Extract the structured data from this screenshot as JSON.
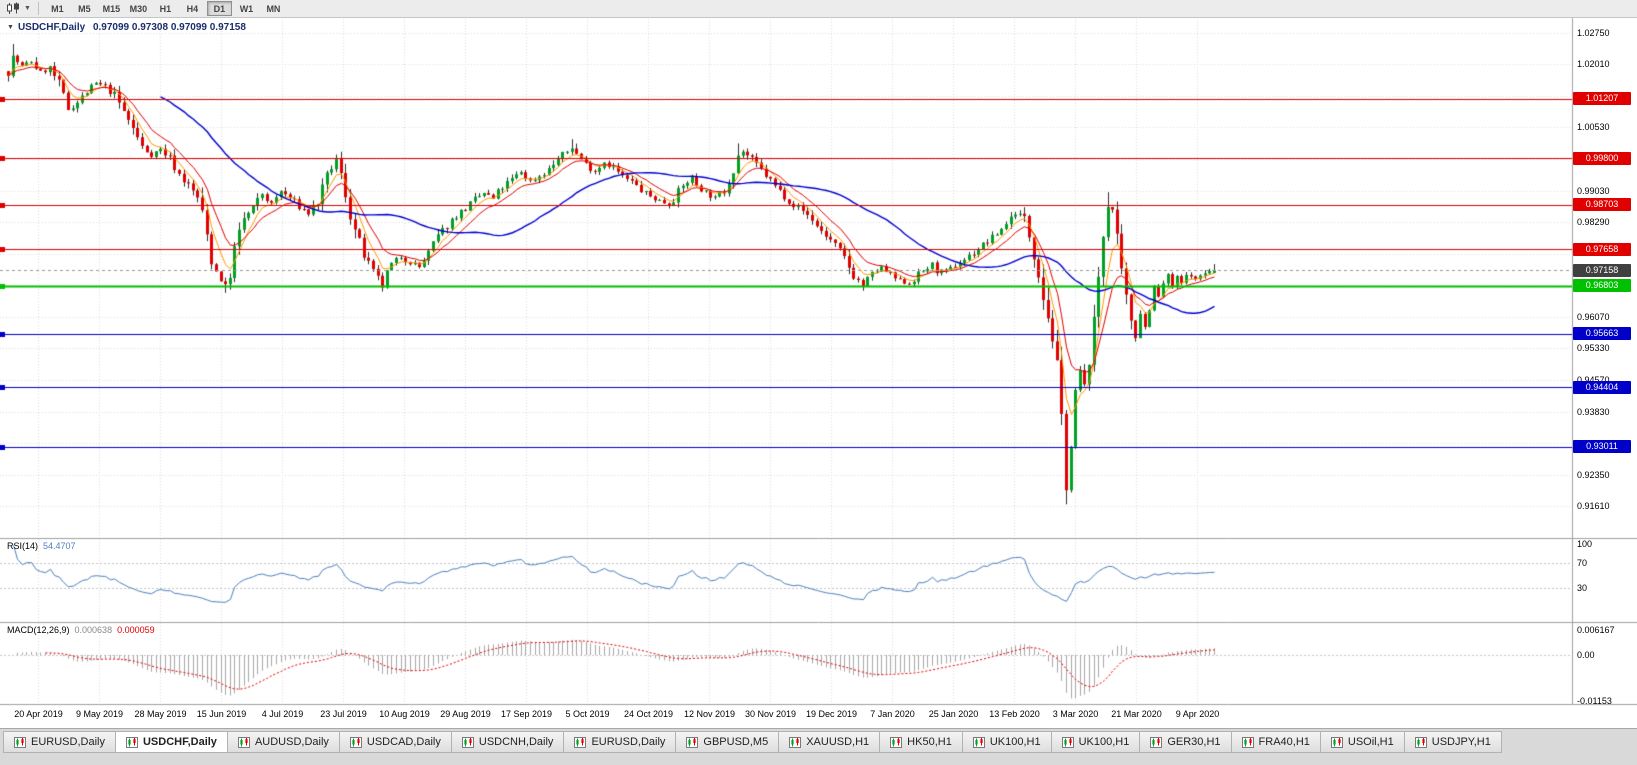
{
  "toolbar": {
    "chart_type_icon": "candlestick-chart-icon",
    "dropdown_icon": "chevron-down-icon",
    "timeframes": [
      {
        "label": "M1",
        "active": false
      },
      {
        "label": "M5",
        "active": false
      },
      {
        "label": "M15",
        "active": false
      },
      {
        "label": "M30",
        "active": false
      },
      {
        "label": "H1",
        "active": false
      },
      {
        "label": "H4",
        "active": false
      },
      {
        "label": "D1",
        "active": true
      },
      {
        "label": "W1",
        "active": false
      },
      {
        "label": "MN",
        "active": false
      }
    ]
  },
  "chart": {
    "collapse_icon": "▼",
    "symbol": "USDCHF,Daily",
    "ohlc_text": "0.97099 0.97308 0.97099 0.97158"
  },
  "price_axis": {
    "labeled_ticks": [
      "1.02750",
      "1.02010",
      "1.00530",
      "0.99030",
      "0.98290",
      "0.96070",
      "0.95330",
      "0.94570",
      "0.93830",
      "0.92350",
      "0.91610"
    ],
    "grid_ticks": [
      1.0275,
      1.0201,
      1.0127,
      1.0053,
      0.9979,
      0.9903,
      0.9829,
      0.9755,
      0.9681,
      0.9607,
      0.9533,
      0.9457,
      0.9383,
      0.9309,
      0.9235,
      0.9161
    ]
  },
  "levels": [
    {
      "value": "1.01207",
      "color": "#e00000",
      "width": 1
    },
    {
      "value": "0.99800",
      "color": "#e00000",
      "width": 1
    },
    {
      "value": "0.98703",
      "color": "#e00000",
      "width": 1
    },
    {
      "value": "0.97658",
      "color": "#e00000",
      "width": 1
    },
    {
      "value": "0.96803",
      "color": "#00c000",
      "width": 2
    },
    {
      "value": "0.95663",
      "color": "#0000c8",
      "width": 1
    },
    {
      "value": "0.94404",
      "color": "#0000c8",
      "width": 1
    },
    {
      "value": "0.93011",
      "color": "#0000c8",
      "width": 1
    }
  ],
  "current_price": {
    "value": "0.97158",
    "badge_color": "#404040"
  },
  "time_axis": {
    "ticks": [
      "20 Apr 2019",
      "9 May 2019",
      "28 May 2019",
      "15 Jun 2019",
      "4 Jul 2019",
      "23 Jul 2019",
      "10 Aug 2019",
      "29 Aug 2019",
      "17 Sep 2019",
      "5 Oct 2019",
      "24 Oct 2019",
      "12 Nov 2019",
      "30 Nov 2019",
      "19 Dec 2019",
      "7 Jan 2020",
      "25 Jan 2020",
      "13 Feb 2020",
      "3 Mar 2020",
      "21 Mar 2020",
      "9 Apr 2020"
    ]
  },
  "rsi": {
    "label": "RSI(14)",
    "value": "54.4707",
    "ticks": [
      "100",
      "70",
      "30"
    ],
    "tick_values": [
      100,
      70,
      30
    ],
    "level_lines": [
      70,
      30
    ]
  },
  "macd": {
    "label": "MACD(12,26,9)",
    "value_main": "0.000638",
    "value_signal": "0.000059",
    "ticks": [
      "0.006167",
      "0.00",
      "-0.01153"
    ],
    "tick_values": [
      0.006167,
      0,
      -0.01153
    ]
  },
  "tabs": {
    "items": [
      {
        "label": "EURUSD,Daily",
        "active": false
      },
      {
        "label": "USDCHF,Daily",
        "active": true
      },
      {
        "label": "AUDUSD,Daily",
        "active": false
      },
      {
        "label": "USDCAD,Daily",
        "active": false
      },
      {
        "label": "USDCNH,Daily",
        "active": false
      },
      {
        "label": "EURUSD,Daily",
        "active": false
      },
      {
        "label": "GBPUSD,M5",
        "active": false
      },
      {
        "label": "XAUUSD,H1",
        "active": false
      },
      {
        "label": "HK50,H1",
        "active": false
      },
      {
        "label": "UK100,H1",
        "active": false
      },
      {
        "label": "UK100,H1",
        "active": false
      },
      {
        "label": "GER30,H1",
        "active": false
      },
      {
        "label": "FRA40,H1",
        "active": false
      },
      {
        "label": "USOil,H1",
        "active": false
      },
      {
        "label": "USDJPY,H1",
        "active": false
      }
    ]
  },
  "colors": {
    "up_candle": "#00a024",
    "down_candle": "#e00000",
    "wick": "#2f2f2f",
    "ma_fast": "#ff9900",
    "ma_mid": "#e00000",
    "ma_slow": "#0000cc",
    "rsi_line": "#4c7fbe",
    "rsi_level": "#c8c8c8",
    "macd_histogram": "#a8a8a8",
    "macd_signal": "#e00000",
    "grid": "#dedede",
    "separator": "#a0a0a0",
    "current_line": "#9a9a9a"
  },
  "chart_data": {
    "type": "candlestick",
    "symbol": "USDCHF",
    "timeframe": "Daily",
    "title": "USDCHF,Daily",
    "visible_range": {
      "price_min": 0.9161,
      "price_max": 1.0275,
      "date_start": "20 Apr 2019",
      "date_end": "9 Apr 2020"
    },
    "num_candles": 262,
    "last_candle": {
      "open": 0.97099,
      "high": 0.97308,
      "low": 0.97099,
      "close": 0.97158
    },
    "horizontal_levels": [
      1.01207,
      0.998,
      0.98703,
      0.97658,
      0.96803,
      0.95663,
      0.94404,
      0.93011
    ],
    "moving_averages": [
      {
        "type": "EMA",
        "period": 5,
        "color": "#ff9900"
      },
      {
        "type": "EMA",
        "period": 10,
        "color": "#e00000"
      },
      {
        "type": "SMA",
        "period": 34,
        "color": "#0000cc"
      }
    ],
    "indicators": [
      {
        "name": "RSI",
        "period": 14,
        "current": 54.4707
      },
      {
        "name": "MACD",
        "fast": 12,
        "slow": 26,
        "signal": 9,
        "current_main": 0.000638,
        "current_signal": 5.9e-05
      }
    ],
    "price_path_anchors": [
      [
        0,
        1.0185
      ],
      [
        1,
        1.0218
      ],
      [
        3,
        1.0196
      ],
      [
        5,
        1.0208
      ],
      [
        7,
        1.0182
      ],
      [
        9,
        1.0193
      ],
      [
        11,
        1.0152
      ],
      [
        13,
        1.0096
      ],
      [
        15,
        1.0112
      ],
      [
        17,
        1.0136
      ],
      [
        19,
        1.0156
      ],
      [
        21,
        1.0148
      ],
      [
        23,
        1.0128
      ],
      [
        25,
        1.009
      ],
      [
        27,
        1.005
      ],
      [
        29,
        1.0006
      ],
      [
        31,
        0.9988
      ],
      [
        33,
        1.0001
      ],
      [
        35,
        0.998
      ],
      [
        37,
        0.9942
      ],
      [
        39,
        0.9916
      ],
      [
        41,
        0.9888
      ],
      [
        42,
        0.9844
      ],
      [
        43,
        0.9798
      ],
      [
        44,
        0.9744
      ],
      [
        45,
        0.9714
      ],
      [
        46,
        0.9698
      ],
      [
        47,
        0.9678
      ],
      [
        48,
        0.9712
      ],
      [
        49,
        0.9762
      ],
      [
        50,
        0.98
      ],
      [
        51,
        0.9838
      ],
      [
        53,
        0.9862
      ],
      [
        55,
        0.9896
      ],
      [
        57,
        0.9872
      ],
      [
        59,
        0.9902
      ],
      [
        61,
        0.9886
      ],
      [
        63,
        0.9866
      ],
      [
        65,
        0.985
      ],
      [
        67,
        0.9878
      ],
      [
        69,
        0.9932
      ],
      [
        70,
        0.996
      ],
      [
        71,
        0.9976
      ],
      [
        72,
        0.9936
      ],
      [
        73,
        0.9898
      ],
      [
        74,
        0.9852
      ],
      [
        75,
        0.981
      ],
      [
        76,
        0.9778
      ],
      [
        77,
        0.9752
      ],
      [
        78,
        0.9728
      ],
      [
        79,
        0.971
      ],
      [
        80,
        0.9694
      ],
      [
        81,
        0.9678
      ],
      [
        82,
        0.9706
      ],
      [
        83,
        0.9728
      ],
      [
        85,
        0.9748
      ],
      [
        87,
        0.9736
      ],
      [
        89,
        0.9724
      ],
      [
        91,
        0.9756
      ],
      [
        93,
        0.9796
      ],
      [
        95,
        0.9822
      ],
      [
        97,
        0.9846
      ],
      [
        99,
        0.9862
      ],
      [
        101,
        0.9882
      ],
      [
        103,
        0.9898
      ],
      [
        105,
        0.9884
      ],
      [
        107,
        0.9912
      ],
      [
        109,
        0.993
      ],
      [
        111,
        0.9948
      ],
      [
        113,
        0.9926
      ],
      [
        115,
        0.9938
      ],
      [
        117,
        0.9954
      ],
      [
        119,
        0.9978
      ],
      [
        121,
        0.9996
      ],
      [
        122,
        1.0006
      ],
      [
        123,
        0.999
      ],
      [
        125,
        0.9966
      ],
      [
        127,
        0.995
      ],
      [
        129,
        0.9972
      ],
      [
        131,
        0.9958
      ],
      [
        133,
        0.9936
      ],
      [
        135,
        0.9924
      ],
      [
        137,
        0.9904
      ],
      [
        139,
        0.989
      ],
      [
        141,
        0.988
      ],
      [
        143,
        0.9872
      ],
      [
        145,
        0.99
      ],
      [
        147,
        0.9926
      ],
      [
        148,
        0.9934
      ],
      [
        149,
        0.9918
      ],
      [
        151,
        0.99
      ],
      [
        153,
        0.9886
      ],
      [
        155,
        0.9904
      ],
      [
        156,
        0.9932
      ],
      [
        157,
        0.996
      ],
      [
        158,
        0.9988
      ],
      [
        159,
        0.9996
      ],
      [
        160,
        0.9986
      ],
      [
        162,
        0.9964
      ],
      [
        164,
        0.994
      ],
      [
        166,
        0.9914
      ],
      [
        168,
        0.9892
      ],
      [
        170,
        0.987
      ],
      [
        172,
        0.9856
      ],
      [
        174,
        0.9836
      ],
      [
        175,
        0.982
      ],
      [
        177,
        0.9798
      ],
      [
        179,
        0.9774
      ],
      [
        181,
        0.9744
      ],
      [
        183,
        0.9704
      ],
      [
        185,
        0.968
      ],
      [
        186,
        0.9694
      ],
      [
        187,
        0.9706
      ],
      [
        188,
        0.9716
      ],
      [
        189,
        0.9722
      ],
      [
        191,
        0.9704
      ],
      [
        193,
        0.969
      ],
      [
        195,
        0.9686
      ],
      [
        197,
        0.9706
      ],
      [
        199,
        0.9722
      ],
      [
        200,
        0.973
      ],
      [
        201,
        0.9716
      ],
      [
        203,
        0.971
      ],
      [
        205,
        0.9728
      ],
      [
        207,
        0.9742
      ],
      [
        209,
        0.9758
      ],
      [
        211,
        0.9776
      ],
      [
        213,
        0.9792
      ],
      [
        215,
        0.9814
      ],
      [
        216,
        0.9828
      ],
      [
        217,
        0.984
      ],
      [
        218,
        0.9852
      ],
      [
        219,
        0.9846
      ],
      [
        220,
        0.9836
      ],
      [
        221,
        0.98
      ],
      [
        222,
        0.976
      ],
      [
        223,
        0.972
      ],
      [
        224,
        0.966
      ],
      [
        225,
        0.961
      ],
      [
        226,
        0.9562
      ],
      [
        227,
        0.948
      ],
      [
        228,
        0.9358
      ],
      [
        229,
        0.9214
      ],
      [
        230,
        0.93
      ],
      [
        231,
        0.9416
      ],
      [
        232,
        0.948
      ],
      [
        233,
        0.9438
      ],
      [
        234,
        0.952
      ],
      [
        235,
        0.9582
      ],
      [
        236,
        0.97
      ],
      [
        237,
        0.98
      ],
      [
        238,
        0.9876
      ],
      [
        239,
        0.9856
      ],
      [
        240,
        0.9776
      ],
      [
        241,
        0.97
      ],
      [
        242,
        0.9642
      ],
      [
        243,
        0.9602
      ],
      [
        244,
        0.9562
      ],
      [
        245,
        0.9618
      ],
      [
        246,
        0.9582
      ],
      [
        247,
        0.964
      ],
      [
        248,
        0.9676
      ],
      [
        249,
        0.9652
      ],
      [
        250,
        0.9686
      ],
      [
        251,
        0.9702
      ],
      [
        252,
        0.9678
      ],
      [
        253,
        0.9698
      ],
      [
        254,
        0.9686
      ],
      [
        255,
        0.97
      ],
      [
        256,
        0.9708
      ],
      [
        257,
        0.9692
      ],
      [
        258,
        0.9704
      ],
      [
        259,
        0.971
      ],
      [
        260,
        0.9714
      ],
      [
        261,
        0.9716
      ]
    ],
    "spikes": {
      "high": [
        [
          1,
          1.0249
        ],
        [
          71,
          0.9988
        ],
        [
          122,
          1.0025
        ],
        [
          158,
          1.0015
        ],
        [
          238,
          0.99
        ]
      ],
      "low": [
        [
          47,
          0.9663
        ],
        [
          81,
          0.9666
        ],
        [
          185,
          0.9668
        ],
        [
          229,
          0.9165
        ],
        [
          244,
          0.9548
        ]
      ]
    }
  }
}
